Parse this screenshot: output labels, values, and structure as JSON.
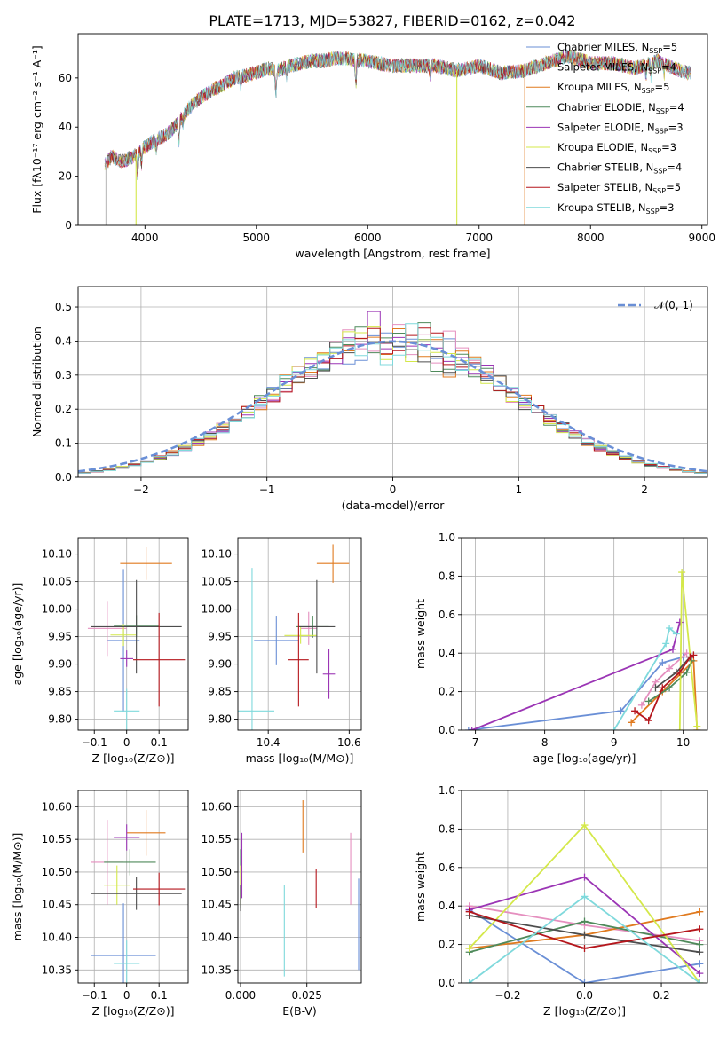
{
  "figure_title": "PLATE=1713, MJD=53827, FIBERID=0162, z=0.042",
  "models": [
    {
      "label": "Chabrier MILES, N",
      "sub": "SSP",
      "tail": "=5",
      "color": "#6a8fd6"
    },
    {
      "label": "Salpeter MILES, N",
      "sub": "SSP",
      "tail": "=4",
      "color": "#e58fbf"
    },
    {
      "label": "Kroupa MILES, N",
      "sub": "SSP",
      "tail": "=5",
      "color": "#e07a1f"
    },
    {
      "label": "Chabrier ELODIE, N",
      "sub": "SSP",
      "tail": "=4",
      "color": "#4f8a5b"
    },
    {
      "label": "Salpeter ELODIE, N",
      "sub": "SSP",
      "tail": "=3",
      "color": "#9b35b5"
    },
    {
      "label": "Kroupa ELODIE, N",
      "sub": "SSP",
      "tail": "=3",
      "color": "#d4e84a"
    },
    {
      "label": "Chabrier STELIB, N",
      "sub": "SSP",
      "tail": "=4",
      "color": "#4d4d4d"
    },
    {
      "label": "Salpeter STELIB, N",
      "sub": "SSP",
      "tail": "=5",
      "color": "#b5161c"
    },
    {
      "label": "Kroupa STELIB, N",
      "sub": "SSP",
      "tail": "=3",
      "color": "#7fd9dc"
    }
  ],
  "chart_data": [
    {
      "id": "spectrum",
      "type": "line",
      "xlabel": "wavelength [Angstrom, rest frame]",
      "ylabel": "Flux [fλ10⁻¹⁷ erg cm⁻² s⁻¹ A⁻¹]",
      "xlim": [
        3400,
        9050
      ],
      "ylim": [
        0,
        78
      ],
      "xticks": [
        4000,
        5000,
        6000,
        7000,
        8000,
        9000
      ],
      "yticks": [
        0,
        20,
        40,
        60
      ],
      "legend_position": "top-right",
      "continuum": {
        "x": [
          3650,
          3700,
          3800,
          3900,
          4000,
          4100,
          4200,
          4300,
          4400,
          4500,
          4600,
          4700,
          4800,
          4900,
          5000,
          5100,
          5200,
          5300,
          5400,
          5500,
          5600,
          5700,
          5800,
          5900,
          6000,
          6200,
          6400,
          6600,
          6800,
          7000,
          7200,
          7400,
          7600,
          7800,
          8000,
          8200,
          8400,
          8600,
          8800,
          8900
        ],
        "y": [
          25,
          28,
          26,
          28,
          32,
          35,
          37,
          42,
          48,
          52,
          55,
          57,
          60,
          61,
          62,
          64,
          63,
          65,
          66,
          67,
          67,
          68,
          68,
          67,
          67,
          65,
          65,
          65,
          63,
          65,
          62,
          63,
          66,
          69,
          66,
          66,
          64,
          67,
          63,
          62
        ]
      },
      "absorption_lines": [
        {
          "x": 3934,
          "depth": 8
        },
        {
          "x": 3969,
          "depth": 6
        },
        {
          "x": 4102,
          "depth": 4
        },
        {
          "x": 4305,
          "depth": 8
        },
        {
          "x": 4340,
          "depth": 3
        },
        {
          "x": 4861,
          "depth": 4
        },
        {
          "x": 5175,
          "depth": 10
        },
        {
          "x": 5270,
          "depth": 4
        },
        {
          "x": 5893,
          "depth": 11
        },
        {
          "x": 6563,
          "depth": 4
        },
        {
          "x": 8498,
          "depth": 4
        },
        {
          "x": 8542,
          "depth": 5
        },
        {
          "x": 8662,
          "depth": 4
        }
      ],
      "mask_drops": [
        {
          "x": 3650,
          "color": "#bbbbbb"
        },
        {
          "x": 3920,
          "color": "#d4e84a"
        },
        {
          "x": 6800,
          "color": "#d4e84a"
        },
        {
          "x": 7410,
          "color": "#e07a1f"
        }
      ]
    },
    {
      "id": "residuals",
      "type": "step",
      "xlabel": "(data-model)/error",
      "ylabel": "Normed distribution",
      "xlim": [
        -2.5,
        2.5
      ],
      "ylim": [
        0,
        0.56
      ],
      "xticks": [
        -2,
        -1,
        0,
        1,
        2
      ],
      "yticks": [
        0.0,
        0.1,
        0.2,
        0.3,
        0.4,
        0.5
      ],
      "grid": true,
      "bin_width": 0.1,
      "bin_start": -2.5,
      "normal_label": "𝒩(0, 1)",
      "normal_color": "#6a8fd6",
      "legend_position": "top-right"
    },
    {
      "id": "age_vs_Z",
      "type": "errorbar",
      "xlabel": "Z [log₁₀(Z/Z⊙)]",
      "ylabel": "age  [log₁₀(age/yr)]",
      "xlim": [
        -0.15,
        0.19
      ],
      "ylim": [
        9.78,
        10.13
      ],
      "xticks": [
        -0.1,
        0.0,
        0.1
      ],
      "yticks": [
        9.8,
        9.85,
        9.9,
        9.95,
        10.0,
        10.05,
        10.1
      ],
      "grid": true,
      "points": [
        {
          "x": -0.01,
          "xe": 0.05,
          "y": 9.943,
          "ye": 0.13
        },
        {
          "x": -0.06,
          "xe": 0.06,
          "y": 9.965,
          "ye": 0.05
        },
        {
          "x": 0.06,
          "xe": 0.08,
          "y": 10.083,
          "ye": 0.03
        },
        {
          "x": 0.03,
          "xe": 0.07,
          "y": 9.969,
          "ye": 0.02
        },
        {
          "x": 0.0,
          "xe": 0.02,
          "y": 9.91,
          "ye": 0.015
        },
        {
          "x": -0.01,
          "xe": 0.04,
          "y": 9.953,
          "ye": 0.02
        },
        {
          "x": 0.03,
          "xe": 0.14,
          "y": 9.968,
          "ye": 0.085
        },
        {
          "x": 0.1,
          "xe": 0.08,
          "y": 9.908,
          "ye": 0.085
        },
        {
          "x": 0.0,
          "xe": 0.04,
          "y": 9.815,
          "ye": 0.04
        }
      ]
    },
    {
      "id": "age_vs_mass",
      "type": "errorbar",
      "xlabel": "mass [log₁₀(M/M⊙)]",
      "ylabel": "",
      "xlim": [
        10.325,
        10.63
      ],
      "ylim": [
        9.78,
        10.13
      ],
      "xticks": [
        10.4,
        10.6
      ],
      "yticks": [
        9.8,
        9.85,
        9.9,
        9.95,
        10.0,
        10.05,
        10.1
      ],
      "grid": true,
      "points": [
        {
          "x": 10.42,
          "xe": 0.055,
          "y": 9.943,
          "ye": 0.045
        },
        {
          "x": 10.5,
          "xe": 0.02,
          "y": 9.965,
          "ye": 0.03
        },
        {
          "x": 10.56,
          "xe": 0.04,
          "y": 10.083,
          "ye": 0.035
        },
        {
          "x": 10.51,
          "xe": 0.04,
          "y": 9.968,
          "ye": 0.02
        },
        {
          "x": 10.55,
          "xe": 0.015,
          "y": 9.882,
          "ye": 0.045
        },
        {
          "x": 10.48,
          "xe": 0.04,
          "y": 9.952,
          "ye": 0.015
        },
        {
          "x": 10.52,
          "xe": 0.045,
          "y": 9.968,
          "ye": 0.085
        },
        {
          "x": 10.475,
          "xe": 0.025,
          "y": 9.908,
          "ye": 0.085
        },
        {
          "x": 10.36,
          "xe": 0.055,
          "y": 9.815,
          "ye": 0.26
        }
      ]
    },
    {
      "id": "massweight_vs_age",
      "type": "line",
      "xlabel": "age  [log₁₀(age/yr)]",
      "ylabel": "mass weight",
      "xlim": [
        6.8,
        10.35
      ],
      "ylim": [
        0,
        1.0
      ],
      "xticks": [
        7,
        8,
        9,
        10
      ],
      "yticks": [
        0.0,
        0.2,
        0.4,
        0.6,
        0.8,
        1.0
      ],
      "grid": true,
      "series": [
        {
          "x": [
            6.9,
            9.1,
            9.7,
            10.0
          ],
          "y": [
            0.0,
            0.1,
            0.35,
            0.38
          ]
        },
        {
          "x": [
            9.4,
            9.6,
            9.8,
            10.05
          ],
          "y": [
            0.13,
            0.25,
            0.32,
            0.4
          ]
        },
        {
          "x": [
            9.25,
            9.7,
            10.15,
            10.2
          ],
          "y": [
            0.04,
            0.2,
            0.36,
            0.0
          ]
        },
        {
          "x": [
            9.5,
            9.8,
            10.05,
            10.12
          ],
          "y": [
            0.15,
            0.22,
            0.3,
            0.36
          ]
        },
        {
          "x": [
            6.95,
            9.85,
            9.95
          ],
          "y": [
            0.0,
            0.42,
            0.56
          ]
        },
        {
          "x": [
            9.95,
            9.98,
            10.2
          ],
          "y": [
            0.0,
            0.82,
            0.02
          ]
        },
        {
          "x": [
            9.6,
            9.9,
            10.1
          ],
          "y": [
            0.22,
            0.3,
            0.38
          ]
        },
        {
          "x": [
            9.3,
            9.5,
            9.7,
            9.95,
            10.1,
            10.15
          ],
          "y": [
            0.1,
            0.05,
            0.22,
            0.3,
            0.38,
            0.39
          ]
        },
        {
          "x": [
            9.0,
            9.75,
            9.8,
            9.9
          ],
          "y": [
            0.0,
            0.45,
            0.53,
            0.5
          ]
        }
      ]
    },
    {
      "id": "mass_vs_Z",
      "type": "errorbar",
      "xlabel": "Z [log₁₀(Z/Z⊙)]",
      "ylabel": "mass [log₁₀(M/M⊙)]",
      "xlim": [
        -0.15,
        0.19
      ],
      "ylim": [
        10.33,
        10.625
      ],
      "xticks": [
        -0.1,
        0.0,
        0.1
      ],
      "yticks": [
        10.35,
        10.4,
        10.45,
        10.5,
        10.55,
        10.6
      ],
      "grid": true,
      "points": [
        {
          "x": -0.01,
          "xe": 0.1,
          "y": 10.372,
          "ye": 0.08
        },
        {
          "x": -0.06,
          "xe": 0.05,
          "y": 10.515,
          "ye": 0.065
        },
        {
          "x": 0.06,
          "xe": 0.06,
          "y": 10.56,
          "ye": 0.035
        },
        {
          "x": 0.01,
          "xe": 0.08,
          "y": 10.515,
          "ye": 0.02
        },
        {
          "x": 0.0,
          "xe": 0.04,
          "y": 10.553,
          "ye": 0.02
        },
        {
          "x": -0.03,
          "xe": 0.04,
          "y": 10.48,
          "ye": 0.03
        },
        {
          "x": 0.03,
          "xe": 0.14,
          "y": 10.467,
          "ye": 0.025
        },
        {
          "x": 0.1,
          "xe": 0.08,
          "y": 10.474,
          "ye": 0.025
        },
        {
          "x": 0.0,
          "xe": 0.04,
          "y": 10.36,
          "ye": 0.035
        }
      ]
    },
    {
      "id": "mass_vs_EBV",
      "type": "errorbar",
      "xlabel": "E(B-V)",
      "ylabel": "",
      "xlim": [
        -0.001,
        0.0455
      ],
      "ylim": [
        10.33,
        10.625
      ],
      "xticks": [
        0.0,
        0.025
      ],
      "xtick_labels": [
        "0.000",
        "0.025"
      ],
      "yticks": [
        10.35,
        10.4,
        10.45,
        10.5,
        10.55,
        10.6
      ],
      "grid": true,
      "points": [
        {
          "x": 0.0445,
          "xe": 0,
          "y": 10.42,
          "ye": 0.07
        },
        {
          "x": 0.0415,
          "xe": 0,
          "y": 10.505,
          "ye": 0.055
        },
        {
          "x": 0.0235,
          "xe": 0,
          "y": 10.57,
          "ye": 0.04
        },
        {
          "x": 0.0,
          "xe": 0,
          "y": 10.49,
          "ye": 0.045
        },
        {
          "x": 0.0005,
          "xe": 0,
          "y": 10.51,
          "ye": 0.05
        },
        {
          "x": 0.0,
          "xe": 0,
          "y": 10.48,
          "ye": 0.03
        },
        {
          "x": 0.0,
          "xe": 0,
          "y": 10.46,
          "ye": 0.02
        },
        {
          "x": 0.0285,
          "xe": 0,
          "y": 10.475,
          "ye": 0.03
        },
        {
          "x": 0.0165,
          "xe": 0,
          "y": 10.41,
          "ye": 0.07
        }
      ]
    },
    {
      "id": "massweight_vs_Z",
      "type": "line",
      "xlabel": "Z [log₁₀(Z/Z⊙)]",
      "ylabel": "mass weight",
      "xlim": [
        -0.32,
        0.32
      ],
      "ylim": [
        0,
        1.0
      ],
      "xticks": [
        -0.2,
        0.0,
        0.2
      ],
      "yticks": [
        0.0,
        0.2,
        0.4,
        0.6,
        0.8,
        1.0
      ],
      "grid": true,
      "series": [
        {
          "x": [
            -0.3,
            0.0,
            0.3
          ],
          "y": [
            0.38,
            0.0,
            0.1
          ]
        },
        {
          "x": [
            -0.3,
            0.0,
            0.3
          ],
          "y": [
            0.4,
            0.3,
            0.22
          ]
        },
        {
          "x": [
            -0.3,
            0.0,
            0.3
          ],
          "y": [
            0.18,
            0.25,
            0.37
          ]
        },
        {
          "x": [
            -0.3,
            0.0,
            0.3
          ],
          "y": [
            0.16,
            0.32,
            0.2
          ]
        },
        {
          "x": [
            -0.3,
            0.0,
            0.3
          ],
          "y": [
            0.38,
            0.55,
            0.05
          ]
        },
        {
          "x": [
            -0.3,
            0.0,
            0.3
          ],
          "y": [
            0.18,
            0.82,
            0.0
          ]
        },
        {
          "x": [
            -0.3,
            0.0,
            0.3
          ],
          "y": [
            0.35,
            0.25,
            0.16
          ]
        },
        {
          "x": [
            -0.3,
            0.0,
            0.3
          ],
          "y": [
            0.37,
            0.18,
            0.28
          ]
        },
        {
          "x": [
            -0.3,
            0.0,
            0.3
          ],
          "y": [
            0.0,
            0.45,
            0.0
          ]
        }
      ]
    }
  ]
}
